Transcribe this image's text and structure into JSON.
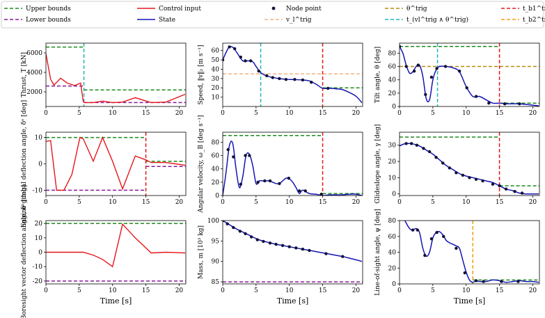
{
  "colors": {
    "upper": "#1a8a1a",
    "lower": "#8a1a9a",
    "control": "#e6161a",
    "state": "#1414b4",
    "node": "#111133",
    "v_trig": "#f2b27e",
    "theta_trig": "#b38a0f",
    "t_mid": "#20b5b5",
    "t_b1": "#e01a1a",
    "t_b2": "#f0a010"
  },
  "legend": [
    {
      "label": "Upper bounds",
      "style": "upper"
    },
    {
      "label": "Control input",
      "style": "control"
    },
    {
      "label": "Node point",
      "style": "node"
    },
    {
      "label": "θ^trig",
      "style": "theta_trig"
    },
    {
      "label": "t_b1^trig",
      "style": "t_b1"
    },
    {
      "label": "Lower bounds",
      "style": "lower"
    },
    {
      "label": "State",
      "style": "state"
    },
    {
      "label": "v_l^trig",
      "style": "v_trig"
    },
    {
      "label": "t_(vl^trig ∧ θ^trig)",
      "style": "t_mid"
    },
    {
      "label": "t_b2^trig",
      "style": "t_b2"
    }
  ],
  "chart_data": [
    {
      "type": "line",
      "id": "thrust",
      "ylabel": "Thrust, T [kN]",
      "xlim": [
        0,
        21
      ],
      "ylim": [
        500,
        7000
      ],
      "xticks": [
        0,
        5,
        10,
        15,
        20
      ],
      "yticks": [
        2000,
        4000,
        6000
      ],
      "upper": [
        [
          0,
          5.7,
          6600
        ],
        [
          5.7,
          21,
          2200
        ]
      ],
      "lower": [
        [
          0,
          5.7,
          2600
        ],
        [
          5.7,
          21,
          900
        ]
      ],
      "vlines": [
        {
          "x": 5.7,
          "style": "t_mid"
        }
      ],
      "hlines": [],
      "control": {
        "x": [
          0,
          0.7,
          1.2,
          2.2,
          3.2,
          4.3,
          5.2,
          5.6,
          5.8,
          7.1,
          8.5,
          10.0,
          11.5,
          13.4,
          15.8,
          18.0,
          20.9
        ],
        "y": [
          5900,
          3300,
          2700,
          3400,
          2900,
          2650,
          2900,
          1000,
          900,
          900,
          1050,
          900,
          950,
          1400,
          900,
          950,
          1750
        ]
      },
      "state": null,
      "nodes": null
    },
    {
      "type": "line",
      "id": "speed",
      "ylabel": "Speed, ‖v‖₂ [m s⁻¹]",
      "xlim": [
        0,
        21
      ],
      "ylim": [
        0,
        68
      ],
      "xticks": [
        0,
        5,
        10,
        15,
        20
      ],
      "yticks": [
        10,
        20,
        30,
        40,
        50,
        60
      ],
      "upper": [
        [
          15,
          21,
          20
        ]
      ],
      "lower": [],
      "vlines": [
        {
          "x": 5.7,
          "style": "t_mid"
        },
        {
          "x": 15,
          "style": "t_b1"
        }
      ],
      "hlines": [
        {
          "y": 35,
          "style": "v_trig"
        }
      ],
      "control": null,
      "state": {
        "x": [
          0,
          0.5,
          1,
          1.6,
          2.2,
          3,
          3.8,
          4.5,
          5,
          5.6,
          6.2,
          7,
          8,
          9,
          10,
          11,
          12,
          13,
          14,
          15,
          16,
          17,
          18,
          19,
          20,
          20.9
        ],
        "y": [
          50,
          58,
          64,
          63,
          57,
          49,
          49,
          48,
          43,
          37,
          34,
          32,
          30.5,
          29.5,
          29,
          28.8,
          28.5,
          27.5,
          24,
          19.5,
          19.5,
          19,
          18,
          15,
          11,
          4
        ]
      },
      "nodes": {
        "x": [
          0,
          1,
          1.8,
          2.7,
          3.4,
          4.2,
          5.4,
          6.6,
          7.5,
          8.5,
          9.5,
          10.8,
          12,
          13.3,
          15.8
        ],
        "y": [
          50,
          64,
          62,
          53,
          49,
          49,
          38,
          33,
          31,
          30,
          29,
          29,
          28.5,
          26,
          19.5
        ]
      }
    },
    {
      "type": "line",
      "id": "tilt",
      "ylabel": "Tilt angle, θ [deg]",
      "xlim": [
        0,
        21
      ],
      "ylim": [
        0,
        95
      ],
      "xticks": [
        0,
        5,
        10,
        15,
        20
      ],
      "yticks": [
        0,
        20,
        40,
        60,
        80
      ],
      "upper": [
        [
          0,
          15,
          90
        ],
        [
          15,
          21,
          5
        ]
      ],
      "lower": [],
      "vlines": [
        {
          "x": 5.7,
          "style": "t_mid"
        },
        {
          "x": 15,
          "style": "t_b1"
        }
      ],
      "hlines": [
        {
          "y": 60,
          "style": "theta_trig"
        }
      ],
      "control": null,
      "state": {
        "x": [
          0,
          0.5,
          1,
          1.5,
          2,
          2.5,
          3,
          3.5,
          4,
          4.5,
          5,
          5.5,
          6,
          7,
          8,
          9,
          10,
          11,
          12,
          13,
          14,
          15,
          16,
          17,
          18,
          19,
          20,
          20.9
        ],
        "y": [
          90,
          80,
          62,
          50,
          52,
          60,
          62,
          45,
          12,
          10,
          40,
          55,
          60,
          60,
          58,
          52,
          30,
          15,
          15,
          10,
          5,
          5,
          4,
          4,
          4,
          3,
          2,
          1
        ]
      },
      "nodes": {
        "x": [
          0,
          1,
          2.2,
          2.8,
          3.9,
          4.8,
          5.6,
          6.9,
          9.0,
          10.1,
          11.5,
          13.4,
          15.8,
          18.0
        ],
        "y": [
          90,
          60,
          53,
          62,
          18,
          44,
          57,
          60,
          53,
          28,
          15,
          5,
          4,
          4
        ]
      }
    },
    {
      "type": "line",
      "id": "gimbal",
      "ylabel": "Engine gimbal deflection angle, δᵉ [deg]",
      "xlim": [
        0,
        21
      ],
      "ylim": [
        -12,
        12
      ],
      "xticks": [
        0,
        5,
        10,
        15,
        20
      ],
      "yticks": [
        -10,
        0,
        10
      ],
      "upper": [
        [
          0,
          15,
          10
        ],
        [
          15,
          21,
          1
        ]
      ],
      "lower": [
        [
          0,
          15,
          -10
        ],
        [
          15,
          21,
          -1
        ]
      ],
      "vlines": [
        {
          "x": 15,
          "style": "t_b1"
        }
      ],
      "hlines": [],
      "control": {
        "x": [
          0,
          0.7,
          1.6,
          2.7,
          3.9,
          5.1,
          5.6,
          7.1,
          8.5,
          10.0,
          11.5,
          13.4,
          15.0,
          15.8,
          18.0,
          20.9
        ],
        "y": [
          8.5,
          8.8,
          -10,
          -10,
          -4,
          10,
          9.5,
          1,
          10,
          1,
          -9.5,
          3,
          1.5,
          0.5,
          0.5,
          -0.5
        ]
      },
      "state": null,
      "nodes": null
    },
    {
      "type": "line",
      "id": "angvel",
      "ylabel": "Angular velocity, ω_B [deg s⁻¹]",
      "xlim": [
        0,
        21
      ],
      "ylim": [
        0,
        95
      ],
      "xticks": [
        0,
        5,
        10,
        15,
        20
      ],
      "yticks": [
        0,
        20,
        40,
        60,
        80
      ],
      "upper": [
        [
          0,
          15,
          90
        ],
        [
          15,
          21,
          3
        ]
      ],
      "lower": [],
      "vlines": [
        {
          "x": 15,
          "style": "t_b1"
        }
      ],
      "hlines": [],
      "control": null,
      "state": {
        "x": [
          0,
          0.5,
          1,
          1.5,
          2,
          2.5,
          3,
          3.5,
          4,
          4.5,
          5,
          5.5,
          6,
          6.5,
          7,
          7.5,
          8,
          8.5,
          9,
          9.5,
          10,
          10.5,
          11,
          11.5,
          12,
          13,
          14,
          15,
          16,
          17,
          18,
          19,
          20,
          20.9
        ],
        "y": [
          0,
          35,
          75,
          78,
          40,
          12,
          28,
          60,
          62,
          45,
          18,
          22,
          22,
          22,
          22,
          20,
          18,
          18,
          22,
          26,
          25,
          20,
          12,
          3,
          8,
          3,
          2,
          0,
          1,
          1,
          1,
          2,
          2,
          0
        ]
      },
      "nodes": {
        "x": [
          0.8,
          1.6,
          2.7,
          3.4,
          4.0,
          5.3,
          6.3,
          7.1,
          8.5,
          9.9,
          11.5,
          12.4,
          14.8
        ],
        "y": [
          69,
          58,
          17,
          60,
          60,
          20,
          22,
          22,
          18,
          26,
          7,
          7,
          2
        ]
      }
    },
    {
      "type": "line",
      "id": "glideslope",
      "ylabel": "Glideslope angle, γ [deg]",
      "xlim": [
        0,
        21
      ],
      "ylim": [
        -1,
        38
      ],
      "xticks": [
        0,
        5,
        10,
        15,
        20
      ],
      "yticks": [
        0,
        10,
        20,
        30
      ],
      "upper": [
        [
          0,
          15,
          35
        ],
        [
          15,
          21,
          5
        ]
      ],
      "lower": [],
      "vlines": [
        {
          "x": 15,
          "style": "t_b1"
        }
      ],
      "hlines": [],
      "control": null,
      "state": {
        "x": [
          0,
          0.5,
          1,
          2,
          3,
          4,
          5,
          6,
          7,
          8,
          9,
          10,
          11,
          12,
          13,
          14,
          15,
          16,
          17,
          18,
          19,
          20,
          20.9
        ],
        "y": [
          29.5,
          30.5,
          31,
          30.8,
          29.5,
          27,
          24.5,
          21,
          17.5,
          15,
          12.5,
          11,
          10,
          9,
          8,
          7,
          5,
          3,
          2,
          0.5,
          0,
          0,
          0
        ]
      },
      "nodes": {
        "x": [
          1,
          1.8,
          2.6,
          3.6,
          4.5,
          5.5,
          6.5,
          7.5,
          8.5,
          9.5,
          10.5,
          11.5,
          12.5,
          14.0,
          15.0,
          16.0,
          17.3,
          18.4
        ],
        "y": [
          31,
          31,
          30,
          28,
          26,
          22.5,
          19,
          16,
          13,
          11.5,
          10,
          9,
          8,
          6,
          5,
          3,
          1.5,
          0.5
        ]
      }
    },
    {
      "type": "line",
      "id": "boresight",
      "ylabel": "Boresight vector deflection angle, δᵇ [deg]",
      "xlim": [
        0,
        21
      ],
      "ylim": [
        -22,
        22
      ],
      "xticks": [
        0,
        5,
        10,
        15,
        20
      ],
      "yticks": [
        -20,
        -10,
        0,
        10,
        20
      ],
      "upper": [
        [
          0,
          21,
          20
        ]
      ],
      "lower": [
        [
          0,
          21,
          -20
        ]
      ],
      "vlines": [],
      "hlines": [],
      "control": {
        "x": [
          0,
          5.6,
          7.1,
          8.5,
          10.0,
          11.5,
          13.4,
          15.8,
          18.0,
          20.9
        ],
        "y": [
          0,
          0,
          -2,
          -5,
          -10,
          19.5,
          10,
          -0.5,
          0,
          -0.5
        ]
      },
      "state": null,
      "nodes": null
    },
    {
      "type": "line",
      "id": "mass",
      "ylabel": "Mass, m [10³ kg]",
      "xlim": [
        0,
        21
      ],
      "ylim": [
        84.5,
        100
      ],
      "xticks": [
        0,
        5,
        10,
        15,
        20
      ],
      "yticks": [
        85,
        90,
        95,
        100
      ],
      "upper": [],
      "lower": [
        [
          0,
          21,
          85
        ]
      ],
      "vlines": [],
      "hlines": [],
      "control": null,
      "state": {
        "x": [
          0,
          1,
          2,
          3,
          4,
          5,
          6,
          7,
          8,
          9,
          10,
          11,
          12,
          13,
          14,
          15,
          16,
          17,
          18,
          19,
          20,
          20.9
        ],
        "y": [
          100,
          99,
          98,
          97.2,
          96.4,
          95.6,
          95,
          94.6,
          94.2,
          93.9,
          93.6,
          93.3,
          93,
          92.7,
          92.4,
          92.1,
          91.8,
          91.5,
          91.2,
          90.8,
          90.4,
          90
        ]
      },
      "nodes": {
        "x": [
          0,
          0.7,
          1.6,
          2.6,
          3.4,
          4.3,
          5.2,
          6.1,
          7.1,
          8.0,
          9.0,
          10.0,
          11.0,
          12.0,
          13.0,
          15.5,
          18.0
        ],
        "y": [
          100,
          99.2,
          98.3,
          97.4,
          96.8,
          96.0,
          95.3,
          94.9,
          94.5,
          94.2,
          93.9,
          93.6,
          93.3,
          93.0,
          92.7,
          91.9,
          91.2
        ]
      }
    },
    {
      "type": "line",
      "id": "los",
      "ylabel": "Line-of-sight angle, ψ [deg]",
      "xlim": [
        0,
        21
      ],
      "ylim": [
        0,
        80
      ],
      "xticks": [
        0,
        5,
        10,
        15,
        20
      ],
      "yticks": [
        0,
        20,
        40,
        60,
        80
      ],
      "upper": [
        [
          11,
          21,
          5
        ]
      ],
      "lower": [],
      "vlines": [
        {
          "x": 11,
          "style": "t_b2"
        }
      ],
      "hlines": [],
      "control": null,
      "state": {
        "x": [
          0.8,
          1.5,
          2,
          2.5,
          3,
          3.5,
          4,
          4.5,
          5,
          5.5,
          6,
          6.5,
          7,
          7.5,
          8,
          8.5,
          9,
          9.5,
          10,
          10.5,
          11,
          11.5,
          12,
          13,
          14,
          15,
          16,
          17,
          18,
          19,
          20,
          20.9
        ],
        "y": [
          80,
          70,
          68,
          70,
          65,
          45,
          35,
          40,
          58,
          65,
          66,
          62,
          55,
          52,
          50,
          48,
          45,
          30,
          15,
          5,
          2,
          4,
          3,
          3,
          5,
          4,
          2,
          3,
          4,
          3,
          3,
          2
        ]
      },
      "nodes": {
        "x": [
          2.0,
          2.7,
          3.8,
          4.8,
          5.6,
          6.6,
          8.5,
          9.8,
          11.5,
          12.6,
          15.3,
          17.8
        ],
        "y": [
          68,
          68,
          36,
          57,
          65,
          60,
          45,
          14,
          4,
          3,
          3,
          3
        ]
      }
    }
  ],
  "axis_label_x": "Time [s]"
}
